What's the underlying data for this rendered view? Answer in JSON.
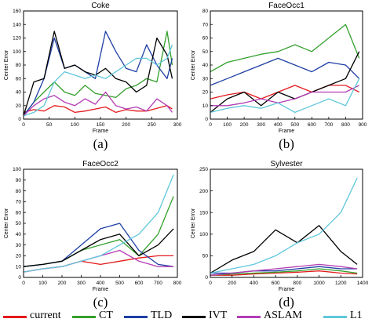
{
  "chart_data": [
    {
      "type": "line",
      "title": "Coke",
      "xlabel": "Frame",
      "ylabel": "Center Error",
      "panel_label": "(a)",
      "xlim": [
        0,
        300
      ],
      "ylim": [
        0,
        160
      ],
      "xticks": [
        0,
        50,
        100,
        150,
        200,
        250,
        300
      ],
      "yticks": [
        0,
        20,
        40,
        60,
        80,
        100,
        120,
        140,
        160
      ],
      "series": [
        {
          "name": "current",
          "color": "#e31a1c",
          "x": [
            0,
            20,
            40,
            60,
            80,
            100,
            120,
            140,
            160,
            180,
            200,
            220,
            240,
            260,
            280,
            290
          ],
          "y": [
            10,
            14,
            12,
            20,
            18,
            10,
            12,
            15,
            18,
            10,
            14,
            12,
            12,
            16,
            20,
            15
          ]
        },
        {
          "name": "CT",
          "color": "#33a02c",
          "x": [
            0,
            20,
            40,
            60,
            80,
            100,
            120,
            140,
            160,
            180,
            200,
            220,
            240,
            260,
            280,
            290
          ],
          "y": [
            5,
            25,
            40,
            55,
            40,
            35,
            50,
            38,
            35,
            32,
            45,
            50,
            60,
            55,
            130,
            80
          ]
        },
        {
          "name": "TLD",
          "color": "#1f3fa6",
          "x": [
            0,
            20,
            40,
            60,
            80,
            100,
            120,
            140,
            160,
            180,
            200,
            220,
            240,
            260,
            280,
            290
          ],
          "y": [
            5,
            25,
            60,
            120,
            75,
            80,
            70,
            60,
            130,
            100,
            75,
            70,
            110,
            80,
            60,
            90
          ]
        },
        {
          "name": "IVT",
          "color": "#000000",
          "x": [
            0,
            20,
            40,
            60,
            80,
            100,
            120,
            140,
            160,
            180,
            200,
            220,
            240,
            260,
            280,
            290
          ],
          "y": [
            5,
            55,
            60,
            130,
            75,
            80,
            70,
            65,
            75,
            60,
            55,
            40,
            50,
            120,
            95,
            60
          ]
        },
        {
          "name": "ASLAM",
          "color": "#b43cb4",
          "x": [
            0,
            20,
            40,
            60,
            80,
            100,
            120,
            140,
            160,
            180,
            200,
            220,
            240,
            260,
            280,
            290
          ],
          "y": [
            5,
            20,
            30,
            35,
            25,
            20,
            30,
            22,
            40,
            20,
            15,
            18,
            12,
            30,
            20,
            10
          ]
        },
        {
          "name": "L1",
          "color": "#5fc7db",
          "x": [
            0,
            20,
            40,
            60,
            80,
            100,
            120,
            140,
            160,
            180,
            200,
            220,
            240,
            260,
            280,
            290
          ],
          "y": [
            5,
            10,
            20,
            55,
            70,
            65,
            60,
            65,
            60,
            70,
            80,
            90,
            90,
            80,
            90,
            110
          ]
        }
      ]
    },
    {
      "type": "line",
      "title": "FaceOcc1",
      "xlabel": "Frame",
      "ylabel": "Center Error",
      "panel_label": "(b)",
      "xlim": [
        0,
        900
      ],
      "ylim": [
        0,
        80
      ],
      "xticks": [
        0,
        100,
        200,
        300,
        400,
        500,
        600,
        700,
        800,
        900
      ],
      "yticks": [
        0,
        10,
        20,
        30,
        40,
        50,
        60,
        70,
        80
      ],
      "series": [
        {
          "name": "current",
          "color": "#e31a1c",
          "x": [
            0,
            100,
            200,
            300,
            400,
            500,
            600,
            700,
            800,
            880
          ],
          "y": [
            15,
            18,
            20,
            15,
            20,
            25,
            20,
            25,
            25,
            20
          ]
        },
        {
          "name": "CT",
          "color": "#33a02c",
          "x": [
            0,
            100,
            200,
            300,
            400,
            500,
            600,
            700,
            800,
            880
          ],
          "y": [
            35,
            42,
            45,
            48,
            50,
            55,
            50,
            60,
            70,
            45
          ]
        },
        {
          "name": "TLD",
          "color": "#1f3fa6",
          "x": [
            0,
            100,
            200,
            300,
            400,
            500,
            600,
            700,
            800,
            880
          ],
          "y": [
            25,
            30,
            35,
            40,
            45,
            40,
            35,
            42,
            40,
            30
          ]
        },
        {
          "name": "IVT",
          "color": "#000000",
          "x": [
            0,
            100,
            200,
            300,
            400,
            500,
            600,
            700,
            800,
            880
          ],
          "y": [
            5,
            15,
            20,
            10,
            20,
            15,
            20,
            25,
            30,
            50
          ]
        },
        {
          "name": "ASLAM",
          "color": "#b43cb4",
          "x": [
            0,
            100,
            200,
            300,
            400,
            500,
            600,
            700,
            800,
            880
          ],
          "y": [
            10,
            10,
            12,
            15,
            12,
            15,
            20,
            20,
            20,
            25
          ]
        },
        {
          "name": "L1",
          "color": "#5fc7db",
          "x": [
            0,
            100,
            200,
            300,
            400,
            500,
            600,
            700,
            800,
            880
          ],
          "y": [
            5,
            8,
            10,
            8,
            12,
            5,
            10,
            15,
            10,
            30
          ]
        }
      ]
    },
    {
      "type": "line",
      "title": "FaceOcc2",
      "xlabel": "Frame",
      "ylabel": "Center Error",
      "panel_label": "(c)",
      "xlim": [
        0,
        800
      ],
      "ylim": [
        0,
        100
      ],
      "xticks": [
        0,
        100,
        200,
        300,
        400,
        500,
        600,
        700,
        800
      ],
      "yticks": [
        0,
        10,
        20,
        30,
        40,
        50,
        60,
        70,
        80,
        90,
        100
      ],
      "series": [
        {
          "name": "current",
          "color": "#e31a1c",
          "x": [
            0,
            100,
            200,
            300,
            400,
            500,
            600,
            700,
            780
          ],
          "y": [
            5,
            8,
            10,
            15,
            12,
            15,
            18,
            20,
            20
          ]
        },
        {
          "name": "CT",
          "color": "#33a02c",
          "x": [
            0,
            100,
            200,
            300,
            400,
            500,
            600,
            700,
            780
          ],
          "y": [
            10,
            12,
            15,
            25,
            30,
            35,
            20,
            40,
            75
          ]
        },
        {
          "name": "TLD",
          "color": "#1f3fa6",
          "x": [
            0,
            100,
            200,
            300,
            400,
            500,
            600,
            700,
            780
          ],
          "y": [
            10,
            12,
            15,
            30,
            45,
            50,
            25,
            12,
            10
          ]
        },
        {
          "name": "IVT",
          "color": "#000000",
          "x": [
            0,
            100,
            200,
            300,
            400,
            500,
            600,
            700,
            780
          ],
          "y": [
            10,
            12,
            15,
            25,
            35,
            40,
            20,
            30,
            45
          ]
        },
        {
          "name": "ASLAM",
          "color": "#b43cb4",
          "x": [
            0,
            100,
            200,
            300,
            400,
            500,
            600,
            700,
            780
          ],
          "y": [
            5,
            8,
            10,
            15,
            20,
            25,
            15,
            10,
            10
          ]
        },
        {
          "name": "L1",
          "color": "#5fc7db",
          "x": [
            0,
            100,
            200,
            300,
            400,
            500,
            600,
            700,
            780
          ],
          "y": [
            5,
            8,
            10,
            15,
            20,
            30,
            40,
            60,
            95
          ]
        }
      ]
    },
    {
      "type": "line",
      "title": "Sylvester",
      "xlabel": "Frame",
      "ylabel": "Center Error",
      "panel_label": "(d)",
      "xlim": [
        0,
        1400
      ],
      "ylim": [
        0,
        250
      ],
      "xticks": [
        0,
        200,
        400,
        600,
        800,
        1000,
        1200,
        1400
      ],
      "yticks": [
        0,
        50,
        100,
        150,
        200,
        250
      ],
      "series": [
        {
          "name": "current",
          "color": "#e31a1c",
          "x": [
            0,
            200,
            400,
            600,
            800,
            1000,
            1200,
            1350
          ],
          "y": [
            5,
            5,
            8,
            10,
            12,
            15,
            10,
            8
          ]
        },
        {
          "name": "CT",
          "color": "#33a02c",
          "x": [
            0,
            200,
            400,
            600,
            800,
            1000,
            1200,
            1350
          ],
          "y": [
            5,
            8,
            10,
            12,
            15,
            20,
            15,
            10
          ]
        },
        {
          "name": "TLD",
          "color": "#1f3fa6",
          "x": [
            0,
            200,
            400,
            600,
            800,
            1000,
            1200,
            1350
          ],
          "y": [
            10,
            10,
            15,
            15,
            20,
            25,
            20,
            20
          ]
        },
        {
          "name": "IVT",
          "color": "#000000",
          "x": [
            0,
            200,
            400,
            600,
            800,
            1000,
            1200,
            1350
          ],
          "y": [
            10,
            40,
            60,
            110,
            80,
            120,
            60,
            30
          ]
        },
        {
          "name": "ASLAM",
          "color": "#b43cb4",
          "x": [
            0,
            200,
            400,
            600,
            800,
            1000,
            1200,
            1350
          ],
          "y": [
            5,
            10,
            15,
            20,
            25,
            30,
            25,
            20
          ]
        },
        {
          "name": "L1",
          "color": "#5fc7db",
          "x": [
            0,
            200,
            400,
            600,
            800,
            1000,
            1200,
            1350
          ],
          "y": [
            10,
            20,
            30,
            50,
            80,
            100,
            150,
            230
          ]
        }
      ]
    }
  ],
  "legend": [
    {
      "label": "current",
      "color": "#e31a1c"
    },
    {
      "label": "CT",
      "color": "#33a02c"
    },
    {
      "label": "TLD",
      "color": "#1f3fa6"
    },
    {
      "label": "IVT",
      "color": "#000000"
    },
    {
      "label": "ASLAM",
      "color": "#b43cb4"
    },
    {
      "label": "L1",
      "color": "#5fc7db"
    }
  ]
}
